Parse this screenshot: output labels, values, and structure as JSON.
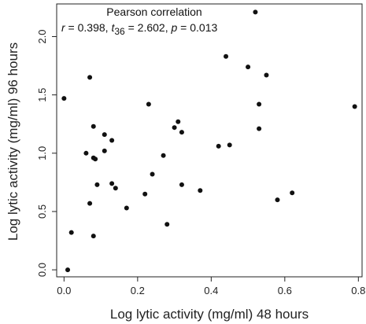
{
  "chart_data": {
    "type": "scatter",
    "xlabel": "Log lytic activity (mg/ml) 48 hours",
    "ylabel": "Log lytic activity (mg/ml) 96 hours",
    "xlim": [
      -0.02,
      0.81
    ],
    "ylim": [
      -0.06,
      2.28
    ],
    "xticks": [
      0.0,
      0.2,
      0.4,
      0.6,
      0.8
    ],
    "yticks": [
      0.0,
      0.5,
      1.0,
      1.5,
      2.0
    ],
    "xtick_labels": [
      "0.0",
      "0.2",
      "0.4",
      "0.6",
      "0.8"
    ],
    "ytick_labels": [
      "0.0",
      "0.5",
      "1.0",
      "1.5",
      "2.0"
    ],
    "grid": false,
    "legend": false,
    "point_color": "#111111",
    "annotation": {
      "title": "Pearson correlation",
      "r_sym": "r",
      "r_val": " = 0.398, ",
      "t_sym": "t",
      "t_sub": "36",
      "t_val": " = 2.602, ",
      "p_sym": "p",
      "p_val": " = 0.013"
    },
    "points": [
      {
        "x": 0.0,
        "y": 1.47
      },
      {
        "x": 0.01,
        "y": 0.0
      },
      {
        "x": 0.02,
        "y": 0.32
      },
      {
        "x": 0.06,
        "y": 1.0
      },
      {
        "x": 0.07,
        "y": 1.65
      },
      {
        "x": 0.07,
        "y": 0.57
      },
      {
        "x": 0.08,
        "y": 1.23
      },
      {
        "x": 0.08,
        "y": 0.96
      },
      {
        "x": 0.085,
        "y": 0.95
      },
      {
        "x": 0.08,
        "y": 0.29
      },
      {
        "x": 0.09,
        "y": 0.73
      },
      {
        "x": 0.11,
        "y": 1.02
      },
      {
        "x": 0.11,
        "y": 1.16
      },
      {
        "x": 0.13,
        "y": 1.11
      },
      {
        "x": 0.13,
        "y": 0.74
      },
      {
        "x": 0.14,
        "y": 0.7
      },
      {
        "x": 0.17,
        "y": 0.53
      },
      {
        "x": 0.22,
        "y": 0.65
      },
      {
        "x": 0.23,
        "y": 1.42
      },
      {
        "x": 0.24,
        "y": 0.82
      },
      {
        "x": 0.27,
        "y": 0.98
      },
      {
        "x": 0.28,
        "y": 0.39
      },
      {
        "x": 0.3,
        "y": 1.22
      },
      {
        "x": 0.31,
        "y": 1.27
      },
      {
        "x": 0.32,
        "y": 1.18
      },
      {
        "x": 0.32,
        "y": 0.73
      },
      {
        "x": 0.37,
        "y": 0.68
      },
      {
        "x": 0.42,
        "y": 1.06
      },
      {
        "x": 0.44,
        "y": 1.83
      },
      {
        "x": 0.45,
        "y": 1.07
      },
      {
        "x": 0.5,
        "y": 1.74
      },
      {
        "x": 0.52,
        "y": 2.21
      },
      {
        "x": 0.53,
        "y": 1.42
      },
      {
        "x": 0.53,
        "y": 1.21
      },
      {
        "x": 0.55,
        "y": 1.67
      },
      {
        "x": 0.58,
        "y": 0.6
      },
      {
        "x": 0.62,
        "y": 0.66
      },
      {
        "x": 0.79,
        "y": 1.4
      }
    ]
  }
}
